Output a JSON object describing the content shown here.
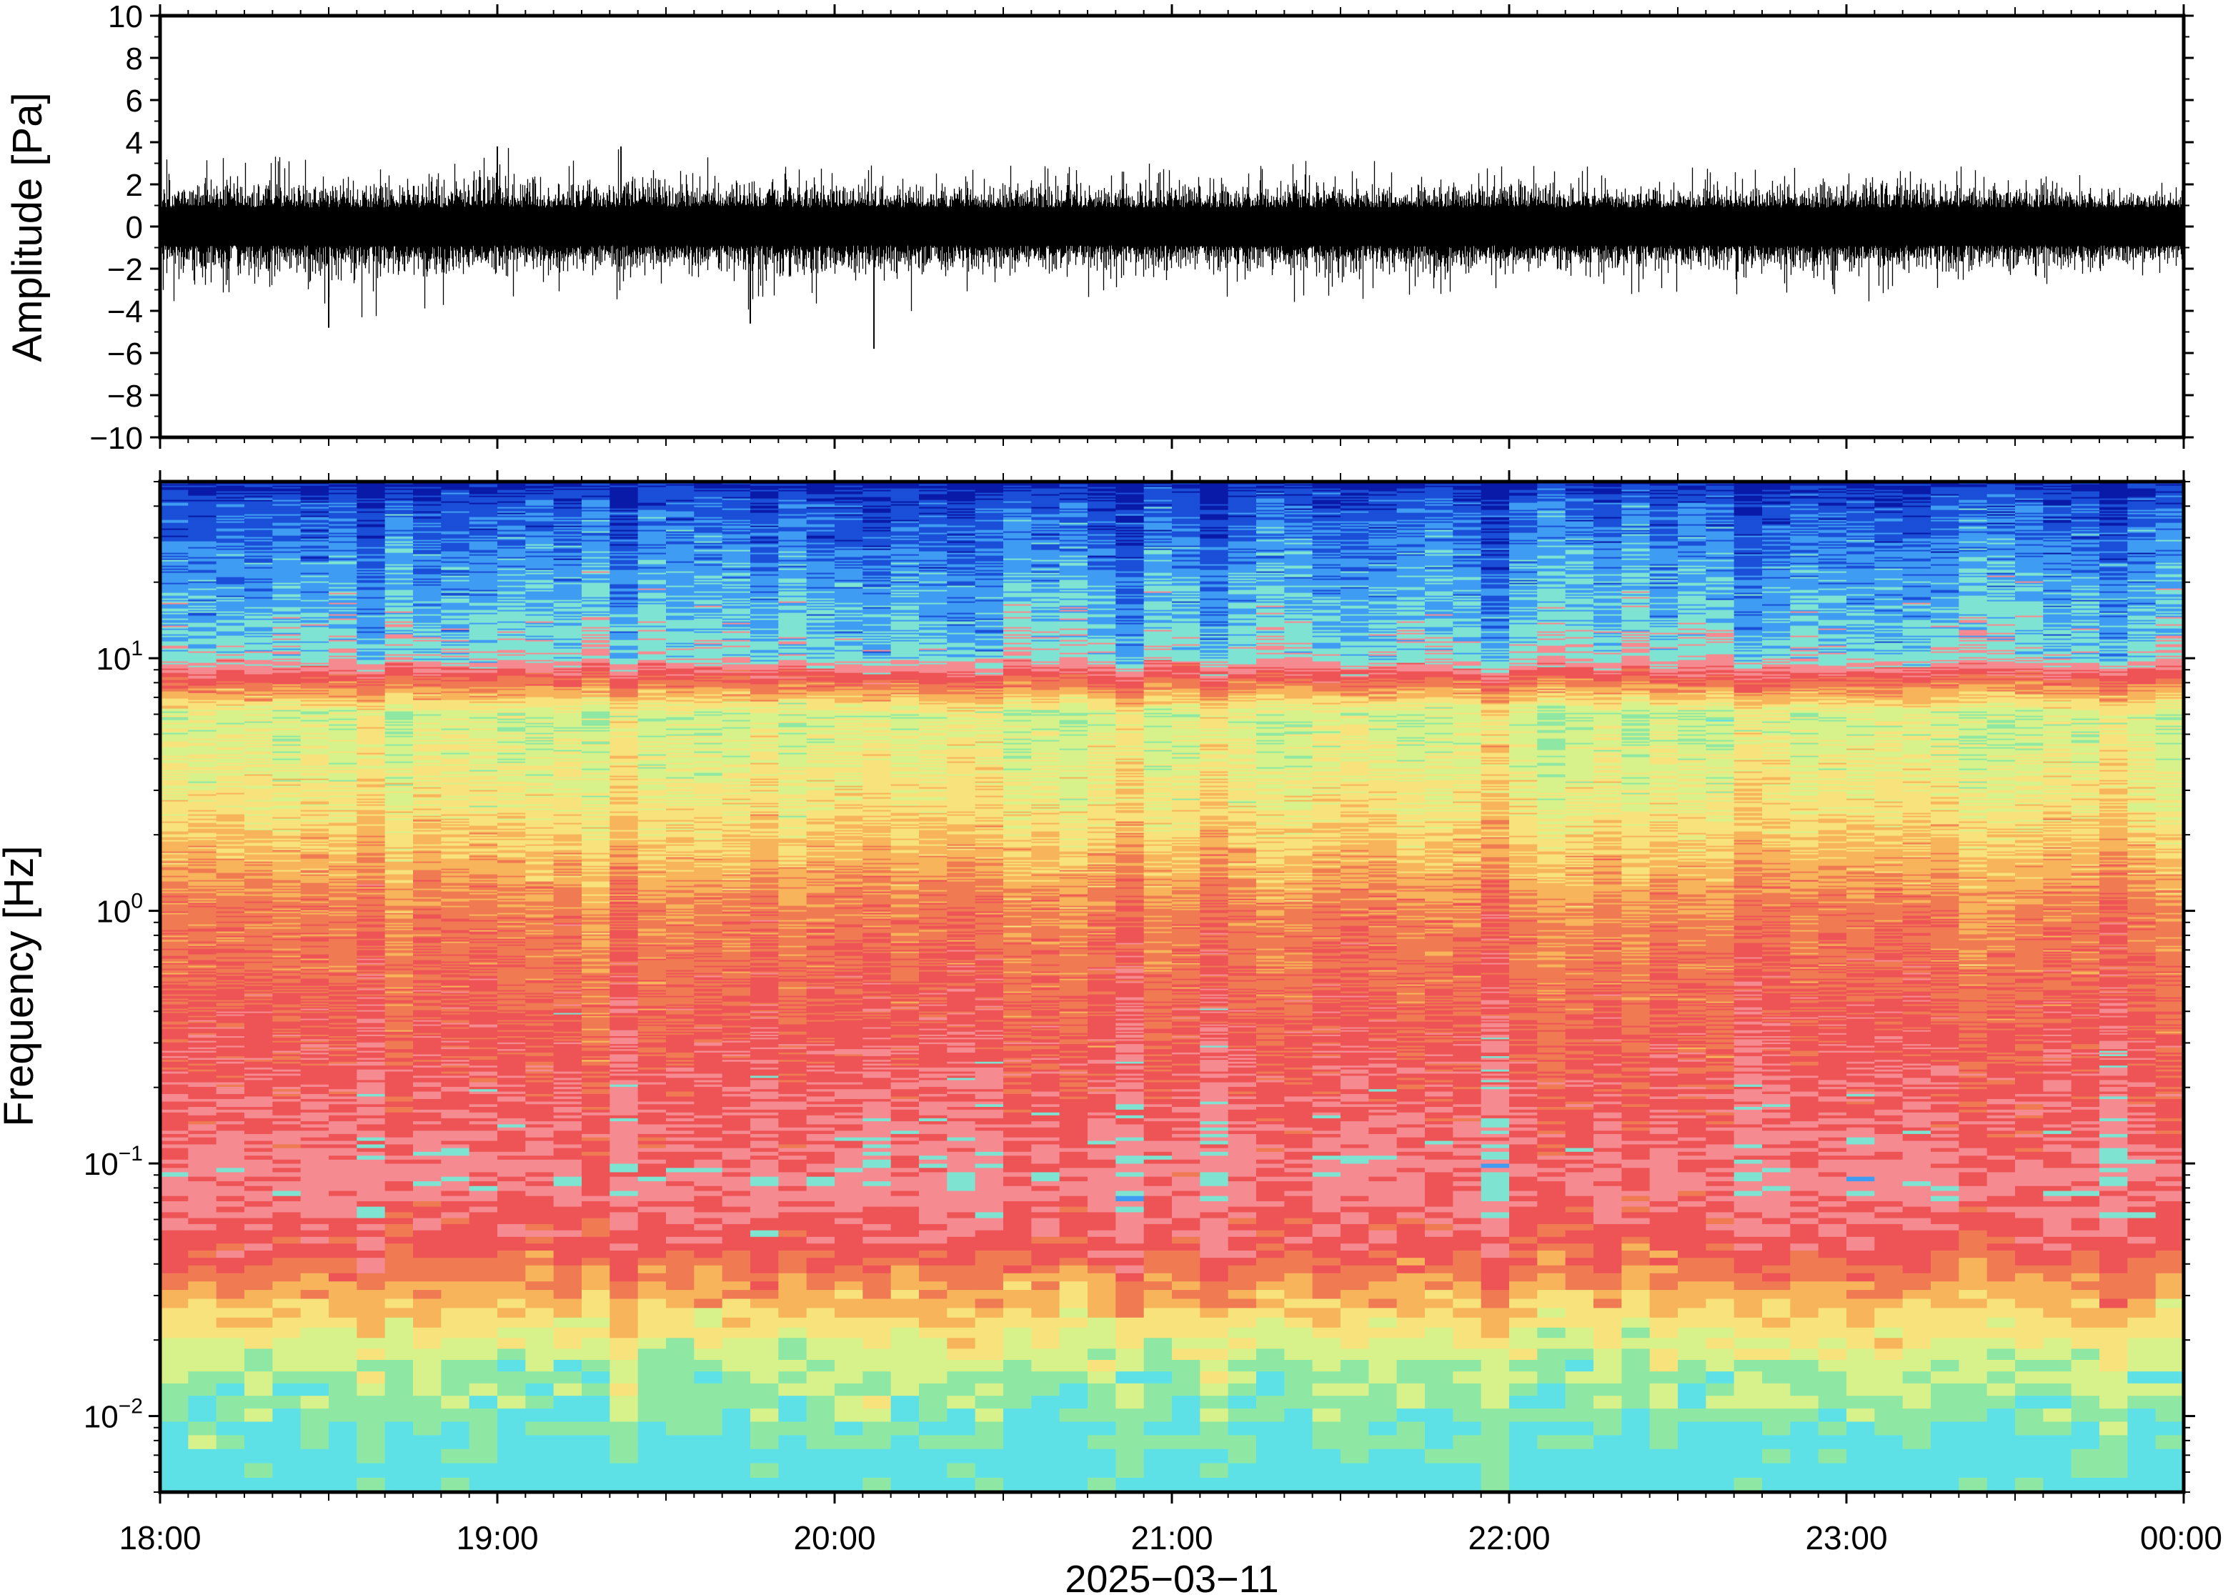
{
  "chart_data": [
    {
      "type": "line",
      "panel": "waveform",
      "ylabel": "Amplitude [Pa]",
      "ylim": [
        -10,
        10
      ],
      "yticks": [
        "10",
        "8",
        "6",
        "4",
        "2",
        "0",
        "−2",
        "−4",
        "−6",
        "−8",
        "−10"
      ],
      "ytick_values": [
        10,
        8,
        6,
        4,
        2,
        0,
        -2,
        -4,
        -6,
        -8,
        -10
      ],
      "x_start": "18:00",
      "x_end": "00:00",
      "trace_color": "#000000",
      "typical_envelope": [
        -2,
        2
      ],
      "noise_envelope_by_hour": [
        {
          "time": "18:00",
          "min": -4.4,
          "max": 3.2
        },
        {
          "time": "18:30",
          "min": -4.8,
          "max": 3.4
        },
        {
          "time": "19:00",
          "min": -3.4,
          "max": 3.8
        },
        {
          "time": "19:30",
          "min": -3.6,
          "max": 3.8
        },
        {
          "time": "20:00",
          "min": -4.6,
          "max": 3.0
        },
        {
          "time": "20:30",
          "min": -3.4,
          "max": 3.2
        },
        {
          "time": "21:00",
          "min": -3.4,
          "max": 3.0
        },
        {
          "time": "21:30",
          "min": -3.8,
          "max": 3.2
        },
        {
          "time": "22:00",
          "min": -3.6,
          "max": 3.0
        },
        {
          "time": "22:30",
          "min": -3.4,
          "max": 2.8
        },
        {
          "time": "23:00",
          "min": -3.6,
          "max": 3.0
        },
        {
          "time": "23:30",
          "min": -3.4,
          "max": 3.0
        },
        {
          "time": "00:00",
          "min": -2.0,
          "max": 2.0
        }
      ],
      "peaks": [
        {
          "time": "18:30",
          "value": -4.8
        },
        {
          "time": "19:00",
          "value": 3.8
        },
        {
          "time": "19:22",
          "value": 3.8
        },
        {
          "time": "19:45",
          "value": -4.6
        },
        {
          "time": "20:07",
          "value": -5.8
        }
      ]
    },
    {
      "type": "heatmap",
      "panel": "spectrogram",
      "xlabel": "2025−03−11",
      "ylabel": "Frequency [Hz]",
      "y_scale": "log",
      "ylim": [
        0.005,
        50
      ],
      "yticks": [
        {
          "base": "10",
          "exp": "1",
          "value": 10
        },
        {
          "base": "10",
          "exp": "0",
          "value": 1
        },
        {
          "base": "10",
          "exp": "−1",
          "value": 0.1
        },
        {
          "base": "10",
          "exp": "−2",
          "value": 0.01
        }
      ],
      "xticks": [
        "18:00",
        "19:00",
        "20:00",
        "21:00",
        "22:00",
        "23:00",
        "00:00"
      ],
      "x_start": "18:00",
      "x_end": "00:00",
      "colormap": [
        "#5ee1e6",
        "#8ee8a4",
        "#d7f28a",
        "#f7e27c",
        "#f8b45a",
        "#f07a52",
        "#ee5456",
        "#f58a90",
        "#7fe3d2",
        "#3f9cf2",
        "#1a4fd8",
        "#0a1aa8"
      ],
      "time_bins": 72,
      "frequency_profile": [
        {
          "frequency": 0.006,
          "color": "#5ee1e6"
        },
        {
          "frequency": 0.01,
          "color": "#8ee8a4"
        },
        {
          "frequency": 0.017,
          "color": "#d7f28a"
        },
        {
          "frequency": 0.028,
          "color": "#f8b45a"
        },
        {
          "frequency": 0.045,
          "color": "#ee5456"
        },
        {
          "frequency": 0.08,
          "color": "#f58a90"
        },
        {
          "frequency": 0.3,
          "color": "#ee5456"
        },
        {
          "frequency": 1.0,
          "color": "#f07a52"
        },
        {
          "frequency": 2.5,
          "color": "#f7e27c"
        },
        {
          "frequency": 6.0,
          "color": "#d7f28a"
        },
        {
          "frequency": 10.0,
          "color": "#7fe3d2"
        },
        {
          "frequency": 20.0,
          "color": "#3f9cf2"
        },
        {
          "frequency": 40.0,
          "color": "#1a4fd8"
        },
        {
          "frequency": 50.0,
          "color": "#0a1aa8"
        }
      ]
    }
  ]
}
